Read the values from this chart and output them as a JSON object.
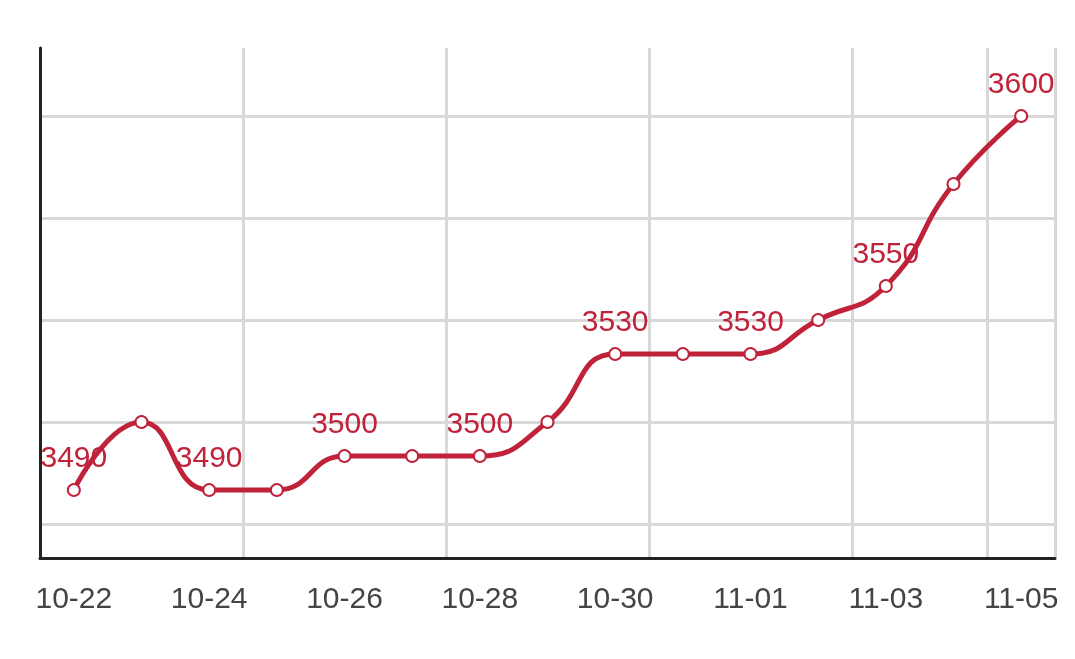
{
  "chart_data": {
    "type": "line",
    "categories": [
      "10-22",
      null,
      "10-24",
      null,
      "10-26",
      null,
      "10-28",
      null,
      "10-30",
      null,
      "11-01",
      null,
      "11-03",
      null,
      "11-05"
    ],
    "series": [
      {
        "color": "#c0223a",
        "values": [
          3490,
          3510,
          3490,
          3490,
          3500,
          3500,
          3500,
          3510,
          3530,
          3530,
          3530,
          3540,
          3550,
          3580,
          3600
        ],
        "value_labels": [
          "3490",
          null,
          "3490",
          null,
          "3500",
          null,
          "3500",
          null,
          "3530",
          null,
          "3530",
          null,
          "3550",
          null,
          "3600"
        ]
      }
    ],
    "ylim": [
      3470,
      3620
    ],
    "yticks": [
      {
        "value": 3480,
        "label": null
      },
      {
        "value": 3510,
        "label": null
      },
      {
        "value": 3540,
        "label": null
      },
      {
        "value": 3570,
        "label": null
      },
      {
        "value": 3600,
        "label": null
      }
    ],
    "tick_labels": "x",
    "grid": true,
    "marker": "circle",
    "line_style": "solid"
  }
}
